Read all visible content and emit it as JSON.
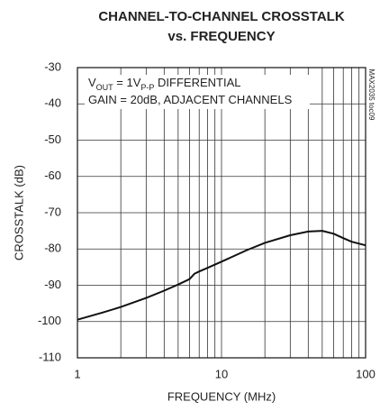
{
  "chart_data": {
    "type": "line",
    "title": [
      "CHANNEL-TO-CHANNEL CROSSTALK",
      "vs. FREQUENCY"
    ],
    "x_label": "FREQUENCY (MHz)",
    "y_label": "CROSSTALK (dB)",
    "annotations": [
      [
        "V",
        "OUT",
        " = 1V",
        "P-P",
        " DIFFERENTIAL"
      ],
      [
        "GAIN = 20dB, ADJACENT CHANNELS"
      ]
    ],
    "watermark": "MAX2035 toc09",
    "xlog": true,
    "grid": true,
    "xlim": [
      1,
      100
    ],
    "xticks": [
      1,
      10,
      100
    ],
    "xminorticks": [
      2,
      3,
      4,
      5,
      6,
      7,
      8,
      9,
      20,
      30,
      40,
      50,
      60,
      70,
      80,
      90
    ],
    "ylim": [
      -110,
      -30
    ],
    "yticks": [
      -110,
      -100,
      -90,
      -80,
      -70,
      -60,
      -50,
      -40,
      -30
    ],
    "series": [
      {
        "name": "crosstalk",
        "color": "#111",
        "x": [
          1,
          1.5,
          2,
          3,
          4,
          5,
          6,
          6.5,
          7,
          8,
          10,
          15,
          20,
          30,
          40,
          50,
          60,
          70,
          80,
          100
        ],
        "values": [
          -99.5,
          -97.5,
          -96,
          -93.5,
          -91.5,
          -89.8,
          -88.3,
          -86.8,
          -86.2,
          -85.2,
          -83.5,
          -80.3,
          -78.3,
          -76.2,
          -75.2,
          -75,
          -75.8,
          -77,
          -78,
          -79
        ]
      }
    ]
  }
}
